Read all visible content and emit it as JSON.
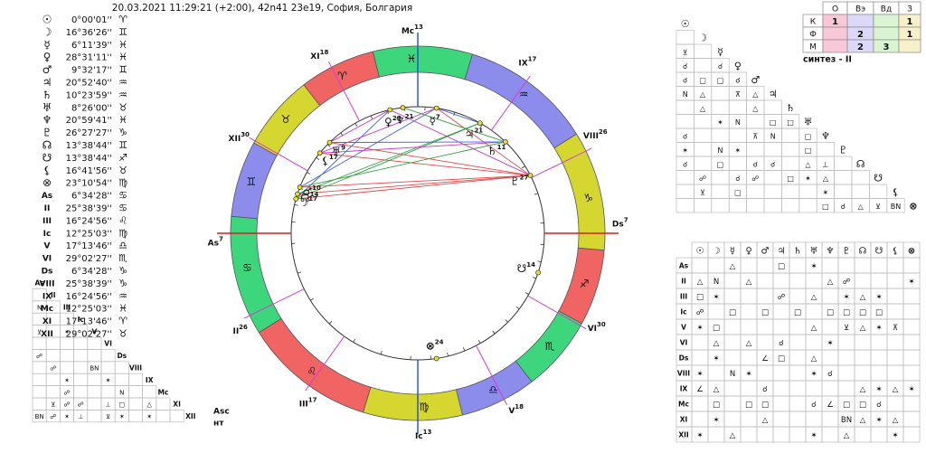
{
  "header": "20.03.2021 11:29:21 (+2:00), 42n41 23e19, София, Болгария",
  "zodiac": [
    "♈",
    "♉",
    "♊",
    "♋",
    "♌",
    "♍",
    "♎",
    "♏",
    "♐",
    "♑",
    "♒",
    "♓"
  ],
  "bodies": [
    {
      "glyph": "☉",
      "pos": "0°00'01''",
      "sign": "♈"
    },
    {
      "glyph": "☽",
      "pos": "16°36'26''",
      "sign": "♊",
      "wheel": "17"
    },
    {
      "glyph": "☿",
      "pos": "6°11'39''",
      "sign": "♓",
      "wheel": "7"
    },
    {
      "glyph": "♀",
      "pos": "28°31'11''",
      "sign": "♓",
      "wheel": "29"
    },
    {
      "glyph": "♂",
      "pos": "9°32'17''",
      "sign": "♊",
      "wheel": "10"
    },
    {
      "glyph": "♃",
      "pos": "20°52'40''",
      "sign": "♒",
      "wheel": "21"
    },
    {
      "glyph": "♄",
      "pos": "10°23'59''",
      "sign": "♒",
      "wheel": "11"
    },
    {
      "glyph": "♅",
      "pos": "8°26'00''",
      "sign": "♉",
      "wheel": "9"
    },
    {
      "glyph": "♆",
      "pos": "20°59'41''",
      "sign": "♓",
      "wheel": "21"
    },
    {
      "glyph": "♇",
      "pos": "26°27'27''",
      "sign": "♑",
      "wheel": "27"
    },
    {
      "glyph": "☊",
      "pos": "13°38'44''",
      "sign": "♊",
      "wheel": "14"
    },
    {
      "glyph": "☋",
      "pos": "13°38'44''",
      "sign": "♐",
      "wheel": "14"
    },
    {
      "glyph": "⚸",
      "pos": "16°41'56''",
      "sign": "♉",
      "wheel": "17"
    },
    {
      "glyph": "⊗",
      "pos": "23°10'54''",
      "sign": "♍",
      "wheel": "24"
    }
  ],
  "cusps": [
    {
      "label": "As",
      "pos": "6°34'28''",
      "sign": "♋",
      "wheel": "7"
    },
    {
      "label": "II",
      "pos": "25°38'39''",
      "sign": "♋",
      "wheel": "26"
    },
    {
      "label": "III",
      "pos": "16°24'56''",
      "sign": "♌",
      "wheel": "17"
    },
    {
      "label": "Ic",
      "pos": "12°25'03''",
      "sign": "♍",
      "wheel": "13"
    },
    {
      "label": "V",
      "pos": "17°13'46''",
      "sign": "♎",
      "wheel": "18"
    },
    {
      "label": "VI",
      "pos": "29°02'27''",
      "sign": "♏",
      "wheel": "30"
    },
    {
      "label": "Ds",
      "pos": "6°34'28''",
      "sign": "♑",
      "wheel": "7"
    },
    {
      "label": "VIII",
      "pos": "25°38'39''",
      "sign": "♑",
      "wheel": "26"
    },
    {
      "label": "IX",
      "pos": "16°24'56''",
      "sign": "♒",
      "wheel": "17"
    },
    {
      "label": "Mc",
      "pos": "12°25'03''",
      "sign": "♓",
      "wheel": "13"
    },
    {
      "label": "XI",
      "pos": "17°13'46''",
      "sign": "♈",
      "wheel": "18"
    },
    {
      "label": "XII",
      "pos": "29°02'27''",
      "sign": "♉",
      "wheel": "30"
    }
  ],
  "elements_table": {
    "columns": [
      "О",
      "Вэ",
      "Вд",
      "З"
    ],
    "rows": [
      {
        "label": "К",
        "values": [
          1,
          null,
          null,
          1
        ]
      },
      {
        "label": "Ф",
        "values": [
          null,
          2,
          null,
          1
        ]
      },
      {
        "label": "М",
        "values": [
          null,
          2,
          3,
          null
        ]
      }
    ]
  },
  "synthesis": "синтез - II",
  "body_aspects": [
    [],
    [
      null
    ],
    [
      "⊻",
      null
    ],
    [
      "☌",
      null,
      "☌"
    ],
    [
      "☌",
      "□",
      "□",
      "☌"
    ],
    [
      "N",
      "△",
      null,
      "⊼",
      "△"
    ],
    [
      null,
      "△",
      null,
      null,
      "△",
      null
    ],
    [
      null,
      null,
      "✶",
      "N",
      null,
      "□",
      "□"
    ],
    [
      "☌",
      null,
      null,
      null,
      "⊼",
      "N",
      null,
      "□"
    ],
    [
      "✶",
      null,
      "N",
      "✶",
      null,
      null,
      null,
      "□",
      null
    ],
    [
      "☌",
      null,
      "□",
      null,
      "☌",
      "☌",
      null,
      "△",
      "⊥",
      null
    ],
    [
      null,
      "☍",
      null,
      "☌",
      "☍",
      null,
      "□",
      "✶",
      "△",
      null,
      null
    ],
    [
      null,
      "⊻",
      null,
      "□",
      null,
      null,
      null,
      null,
      "✶",
      null,
      null,
      null
    ],
    [
      null,
      null,
      null,
      null,
      null,
      null,
      null,
      null,
      "□",
      "☌",
      "△",
      "⊻",
      "BN"
    ]
  ],
  "cusp_body_aspects": [
    [
      null,
      null,
      "△",
      null,
      null,
      "□",
      null,
      "✶",
      null,
      null,
      null,
      null,
      null,
      null
    ],
    [
      "△",
      "N",
      null,
      "△",
      null,
      null,
      null,
      null,
      "△",
      "☍",
      null,
      null,
      null,
      "✶"
    ],
    [
      "□",
      "✶",
      null,
      null,
      null,
      "☍",
      null,
      "△",
      null,
      "✶",
      "△",
      "✶",
      null,
      null
    ],
    [
      "☍",
      null,
      "□",
      null,
      "□",
      null,
      "□",
      null,
      "□",
      "□",
      "□",
      "□",
      null,
      null
    ],
    [
      "✶",
      "□",
      null,
      null,
      null,
      null,
      null,
      "△",
      null,
      "⊻",
      "△",
      "✶",
      "⊼",
      null
    ],
    [
      null,
      "△",
      null,
      "△",
      null,
      "☌",
      null,
      null,
      "✶",
      null,
      null,
      null,
      null,
      null
    ],
    [
      null,
      "✶",
      null,
      null,
      "∠",
      "□",
      null,
      "△",
      null,
      null,
      null,
      null,
      null,
      null
    ],
    [
      "✶",
      null,
      "N",
      "✶",
      null,
      null,
      null,
      "✶",
      "☌",
      null,
      null,
      null,
      null,
      null
    ],
    [
      "∠",
      "△",
      null,
      null,
      "☌",
      null,
      null,
      null,
      null,
      null,
      "△",
      "✶",
      "△",
      "✶"
    ],
    [
      null,
      "□",
      null,
      "□",
      "□",
      null,
      null,
      "☌",
      "∠",
      "□",
      "□",
      "☌",
      null,
      null
    ],
    [
      null,
      "✶",
      null,
      null,
      "△",
      null,
      null,
      null,
      null,
      "BN",
      "△",
      "✶",
      "△",
      null
    ],
    [
      "✶",
      null,
      "△",
      null,
      null,
      null,
      null,
      "✶",
      null,
      "△",
      null,
      null,
      "✶",
      null
    ]
  ],
  "cusp_aspects": [
    [],
    [
      null
    ],
    [
      "N",
      null
    ],
    [
      null,
      null,
      null
    ],
    [
      "⊻",
      null,
      "✶",
      null
    ],
    [
      null,
      null,
      null,
      null,
      null
    ],
    [
      "☍",
      null,
      null,
      null,
      null,
      null
    ],
    [
      null,
      "☍",
      null,
      null,
      "BN",
      null,
      null
    ],
    [
      null,
      null,
      "✶",
      null,
      null,
      "✶",
      null,
      null
    ],
    [
      null,
      null,
      "☍",
      null,
      null,
      null,
      "N",
      null,
      null
    ],
    [
      null,
      "⊻",
      "☍",
      "☍",
      null,
      "⊥",
      "□",
      null,
      "△",
      null
    ],
    [
      "BN",
      "☍",
      "✶",
      "⊥",
      null,
      "⊻",
      "✶",
      null,
      "✶",
      null,
      null
    ]
  ],
  "asc_note": [
    "Asc",
    "нт"
  ],
  "symbol_colors": {
    "△": "#e02020",
    "□": "#2030d0",
    "✶": "#e02020",
    "☍": "#2030d0",
    "☌": "#108a10",
    "N": "#2030d0",
    "⊻": "#c020c0",
    "⊼": "#e02020",
    "∠": "#2030d0",
    "⊥": "#108a10",
    "BN": "#202080"
  }
}
